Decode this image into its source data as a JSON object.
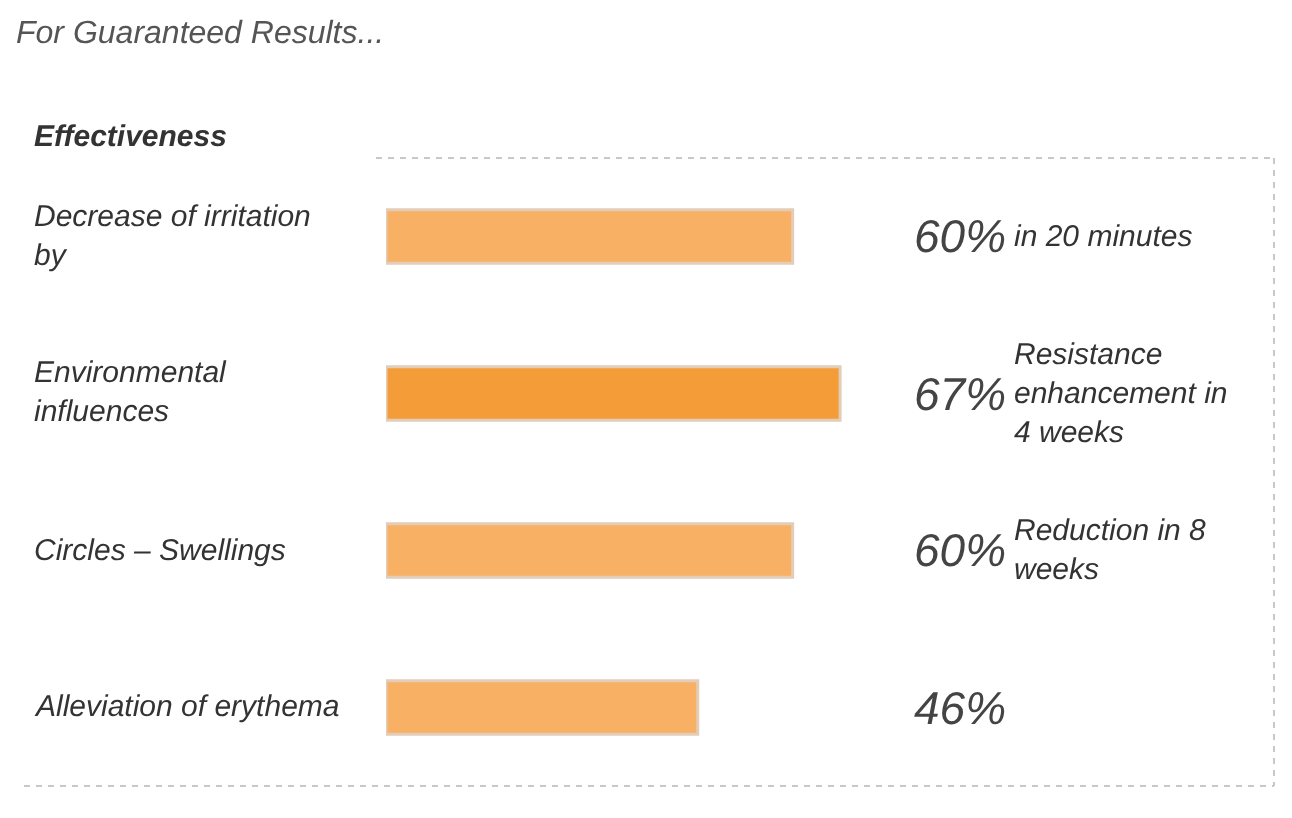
{
  "chart_data": {
    "type": "bar",
    "orientation": "horizontal",
    "title": "For Guaranteed Results...",
    "subtitle": "Effectiveness",
    "categories": [
      "Decrease of irritation by",
      "Environmental influences",
      "Circles – Swellings",
      "Alleviation of erythema"
    ],
    "values": [
      60,
      67,
      60,
      46
    ],
    "value_labels": [
      "60%",
      "67%",
      "60%",
      "46%"
    ],
    "colors": [
      "#f7b064",
      "#f49d38",
      "#f7b064",
      "#f7b064"
    ],
    "annotations": [
      "in 20 minutes",
      "Resistance enhancement in 4 weeks",
      "Reduction in 8 weeks"
    ],
    "tick_labels": "y"
  }
}
